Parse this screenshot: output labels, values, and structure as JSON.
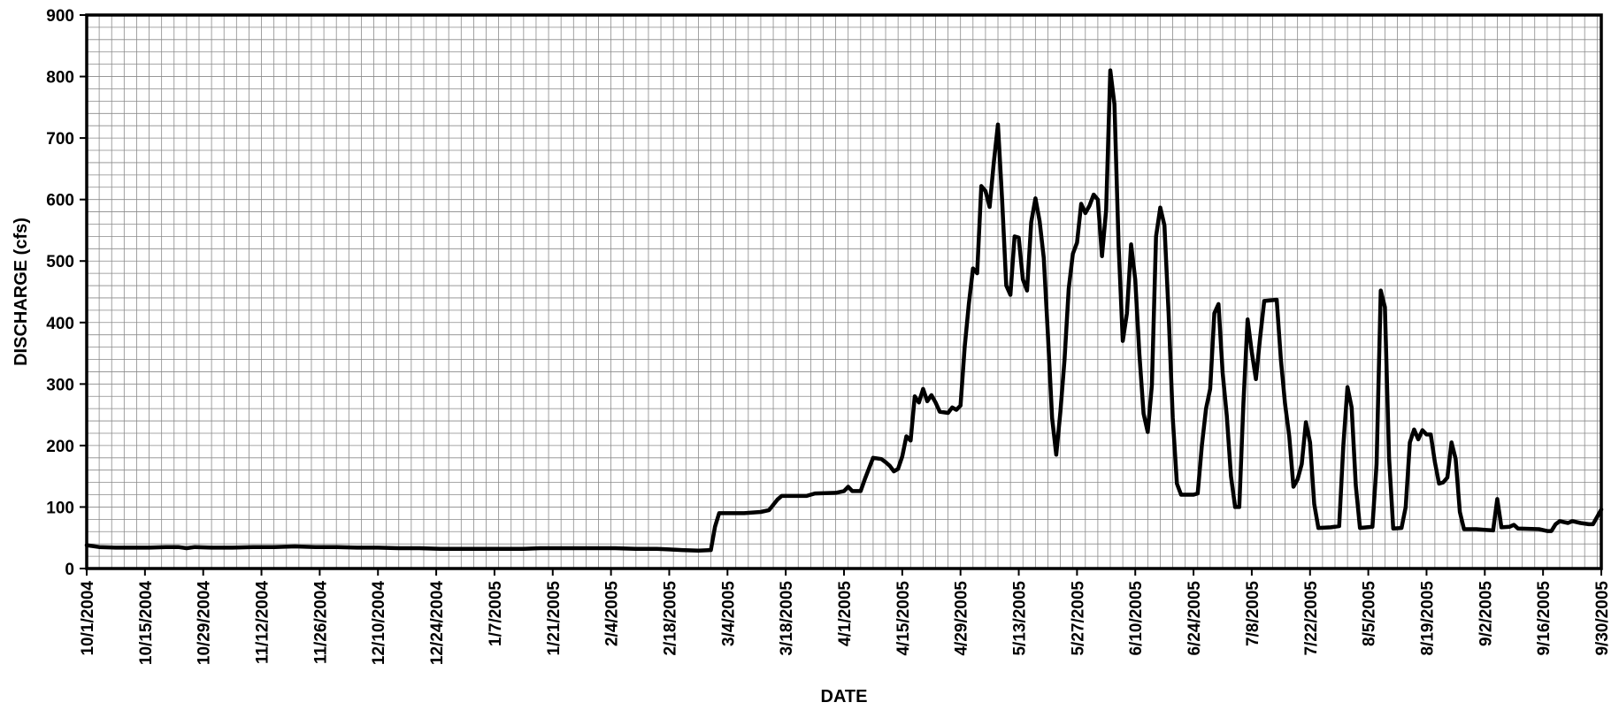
{
  "chart_data": {
    "type": "line",
    "xlabel": "DATE",
    "ylabel": "DISCHARGE (cfs)",
    "ylim": [
      0,
      900
    ],
    "y_ticks": [
      0,
      100,
      200,
      300,
      400,
      500,
      600,
      700,
      800,
      900
    ],
    "x_start": "10/1/2004",
    "x_end": "9/30/2005",
    "x_ticks": [
      "10/1/2004",
      "10/15/2004",
      "10/29/2004",
      "11/12/2004",
      "11/26/2004",
      "12/10/2004",
      "12/24/2004",
      "1/7/2005",
      "1/21/2005",
      "2/4/2005",
      "2/18/2005",
      "3/4/2005",
      "3/18/2005",
      "4/1/2005",
      "4/15/2005",
      "4/29/2005",
      "5/13/2005",
      "5/27/2005",
      "6/10/2005",
      "6/24/2005",
      "7/8/2005",
      "7/22/2005",
      "8/5/2005",
      "8/19/2005",
      "9/2/2005",
      "9/16/2005",
      "9/30/2005"
    ],
    "grid": true,
    "line_color": "#000000",
    "series": [
      {
        "points": [
          [
            "10/1/2004",
            38
          ],
          [
            "10/4/2004",
            35
          ],
          [
            "10/8/2004",
            34
          ],
          [
            "10/12/2004",
            34
          ],
          [
            "10/16/2004",
            34
          ],
          [
            "10/20/2004",
            35
          ],
          [
            "10/23/2004",
            35
          ],
          [
            "10/25/2004",
            33
          ],
          [
            "10/27/2004",
            35
          ],
          [
            "10/31/2004",
            34
          ],
          [
            "11/5/2004",
            34
          ],
          [
            "11/10/2004",
            35
          ],
          [
            "11/15/2004",
            35
          ],
          [
            "11/20/2004",
            36
          ],
          [
            "11/25/2004",
            35
          ],
          [
            "11/30/2004",
            35
          ],
          [
            "12/5/2004",
            34
          ],
          [
            "12/10/2004",
            34
          ],
          [
            "12/15/2004",
            33
          ],
          [
            "12/20/2004",
            33
          ],
          [
            "12/25/2004",
            32
          ],
          [
            "12/31/2004",
            32
          ],
          [
            "1/7/2005",
            32
          ],
          [
            "1/14/2005",
            32
          ],
          [
            "1/18/2005",
            33
          ],
          [
            "1/23/2005",
            33
          ],
          [
            "1/28/2005",
            33
          ],
          [
            "2/1/2005",
            33
          ],
          [
            "2/5/2005",
            33
          ],
          [
            "2/10/2005",
            32
          ],
          [
            "2/15/2005",
            32
          ],
          [
            "2/18/2005",
            31
          ],
          [
            "2/21/2005",
            30
          ],
          [
            "2/25/2005",
            29
          ],
          [
            "2/28/2005",
            30
          ],
          [
            "3/1/2005",
            68
          ],
          [
            "3/2/2005",
            90
          ],
          [
            "3/4/2005",
            90
          ],
          [
            "3/8/2005",
            90
          ],
          [
            "3/12/2005",
            92
          ],
          [
            "3/14/2005",
            95
          ],
          [
            "3/16/2005",
            112
          ],
          [
            "3/17/2005",
            118
          ],
          [
            "3/20/2005",
            118
          ],
          [
            "3/23/2005",
            118
          ],
          [
            "3/25/2005",
            122
          ],
          [
            "3/30/2005",
            123
          ],
          [
            "4/1/2005",
            126
          ],
          [
            "4/2/2005",
            133
          ],
          [
            "4/3/2005",
            126
          ],
          [
            "4/5/2005",
            126
          ],
          [
            "4/6/2005",
            145
          ],
          [
            "4/8/2005",
            180
          ],
          [
            "4/10/2005",
            178
          ],
          [
            "4/11/2005",
            173
          ],
          [
            "4/12/2005",
            167
          ],
          [
            "4/13/2005",
            158
          ],
          [
            "4/14/2005",
            162
          ],
          [
            "4/15/2005",
            182
          ],
          [
            "4/16/2005",
            215
          ],
          [
            "4/17/2005",
            208
          ],
          [
            "4/18/2005",
            280
          ],
          [
            "4/19/2005",
            270
          ],
          [
            "4/20/2005",
            292
          ],
          [
            "4/21/2005",
            272
          ],
          [
            "4/22/2005",
            282
          ],
          [
            "4/23/2005",
            270
          ],
          [
            "4/24/2005",
            255
          ],
          [
            "4/26/2005",
            253
          ],
          [
            "4/27/2005",
            262
          ],
          [
            "4/28/2005",
            258
          ],
          [
            "4/29/2005",
            265
          ],
          [
            "4/30/2005",
            360
          ],
          [
            "5/1/2005",
            430
          ],
          [
            "5/2/2005",
            488
          ],
          [
            "5/3/2005",
            480
          ],
          [
            "5/4/2005",
            622
          ],
          [
            "5/5/2005",
            614
          ],
          [
            "5/6/2005",
            588
          ],
          [
            "5/7/2005",
            660
          ],
          [
            "5/8/2005",
            722
          ],
          [
            "5/9/2005",
            600
          ],
          [
            "5/10/2005",
            460
          ],
          [
            "5/11/2005",
            445
          ],
          [
            "5/12/2005",
            540
          ],
          [
            "5/13/2005",
            538
          ],
          [
            "5/14/2005",
            470
          ],
          [
            "5/15/2005",
            452
          ],
          [
            "5/16/2005",
            563
          ],
          [
            "5/17/2005",
            602
          ],
          [
            "5/18/2005",
            565
          ],
          [
            "5/19/2005",
            505
          ],
          [
            "5/20/2005",
            380
          ],
          [
            "5/21/2005",
            245
          ],
          [
            "5/22/2005",
            185
          ],
          [
            "5/23/2005",
            255
          ],
          [
            "5/24/2005",
            340
          ],
          [
            "5/25/2005",
            455
          ],
          [
            "5/26/2005",
            512
          ],
          [
            "5/27/2005",
            530
          ],
          [
            "5/28/2005",
            593
          ],
          [
            "5/29/2005",
            578
          ],
          [
            "5/30/2005",
            590
          ],
          [
            "5/31/2005",
            608
          ],
          [
            "6/1/2005",
            600
          ],
          [
            "6/2/2005",
            508
          ],
          [
            "6/3/2005",
            583
          ],
          [
            "6/4/2005",
            810
          ],
          [
            "6/5/2005",
            755
          ],
          [
            "6/6/2005",
            525
          ],
          [
            "6/7/2005",
            370
          ],
          [
            "6/8/2005",
            415
          ],
          [
            "6/9/2005",
            527
          ],
          [
            "6/10/2005",
            470
          ],
          [
            "6/11/2005",
            348
          ],
          [
            "6/12/2005",
            252
          ],
          [
            "6/13/2005",
            222
          ],
          [
            "6/14/2005",
            298
          ],
          [
            "6/15/2005",
            540
          ],
          [
            "6/16/2005",
            587
          ],
          [
            "6/17/2005",
            558
          ],
          [
            "6/18/2005",
            415
          ],
          [
            "6/19/2005",
            245
          ],
          [
            "6/20/2005",
            138
          ],
          [
            "6/21/2005",
            120
          ],
          [
            "6/24/2005",
            120
          ],
          [
            "6/25/2005",
            122
          ],
          [
            "6/26/2005",
            200
          ],
          [
            "6/27/2005",
            260
          ],
          [
            "6/28/2005",
            292
          ],
          [
            "6/29/2005",
            415
          ],
          [
            "6/30/2005",
            430
          ],
          [
            "7/1/2005",
            318
          ],
          [
            "7/2/2005",
            248
          ],
          [
            "7/3/2005",
            150
          ],
          [
            "7/4/2005",
            100
          ],
          [
            "7/5/2005",
            100
          ],
          [
            "7/6/2005",
            270
          ],
          [
            "7/7/2005",
            405
          ],
          [
            "7/8/2005",
            352
          ],
          [
            "7/9/2005",
            308
          ],
          [
            "7/10/2005",
            375
          ],
          [
            "7/11/2005",
            435
          ],
          [
            "7/14/2005",
            437
          ],
          [
            "7/15/2005",
            340
          ],
          [
            "7/16/2005",
            268
          ],
          [
            "7/17/2005",
            215
          ],
          [
            "7/18/2005",
            133
          ],
          [
            "7/19/2005",
            145
          ],
          [
            "7/20/2005",
            170
          ],
          [
            "7/21/2005",
            238
          ],
          [
            "7/22/2005",
            205
          ],
          [
            "7/23/2005",
            105
          ],
          [
            "7/24/2005",
            66
          ],
          [
            "7/27/2005",
            67
          ],
          [
            "7/29/2005",
            69
          ],
          [
            "7/30/2005",
            200
          ],
          [
            "7/31/2005",
            295
          ],
          [
            "8/1/2005",
            262
          ],
          [
            "8/2/2005",
            135
          ],
          [
            "8/3/2005",
            66
          ],
          [
            "8/6/2005",
            68
          ],
          [
            "8/7/2005",
            170
          ],
          [
            "8/8/2005",
            452
          ],
          [
            "8/9/2005",
            425
          ],
          [
            "8/10/2005",
            180
          ],
          [
            "8/11/2005",
            65
          ],
          [
            "8/13/2005",
            66
          ],
          [
            "8/14/2005",
            100
          ],
          [
            "8/15/2005",
            205
          ],
          [
            "8/16/2005",
            226
          ],
          [
            "8/17/2005",
            210
          ],
          [
            "8/18/2005",
            225
          ],
          [
            "8/19/2005",
            218
          ],
          [
            "8/20/2005",
            218
          ],
          [
            "8/21/2005",
            173
          ],
          [
            "8/22/2005",
            138
          ],
          [
            "8/23/2005",
            140
          ],
          [
            "8/24/2005",
            148
          ],
          [
            "8/25/2005",
            205
          ],
          [
            "8/26/2005",
            178
          ],
          [
            "8/27/2005",
            92
          ],
          [
            "8/28/2005",
            64
          ],
          [
            "8/31/2005",
            64
          ],
          [
            "9/2/2005",
            63
          ],
          [
            "9/4/2005",
            62
          ],
          [
            "9/5/2005",
            113
          ],
          [
            "9/6/2005",
            67
          ],
          [
            "9/8/2005",
            68
          ],
          [
            "9/9/2005",
            71
          ],
          [
            "9/10/2005",
            65
          ],
          [
            "9/15/2005",
            64
          ],
          [
            "9/17/2005",
            61
          ],
          [
            "9/18/2005",
            61
          ],
          [
            "9/19/2005",
            72
          ],
          [
            "9/20/2005",
            77
          ],
          [
            "9/22/2005",
            74
          ],
          [
            "9/23/2005",
            77
          ],
          [
            "9/25/2005",
            74
          ],
          [
            "9/27/2005",
            72
          ],
          [
            "9/28/2005",
            72
          ],
          [
            "9/29/2005",
            84
          ],
          [
            "9/30/2005",
            96
          ]
        ]
      }
    ]
  }
}
